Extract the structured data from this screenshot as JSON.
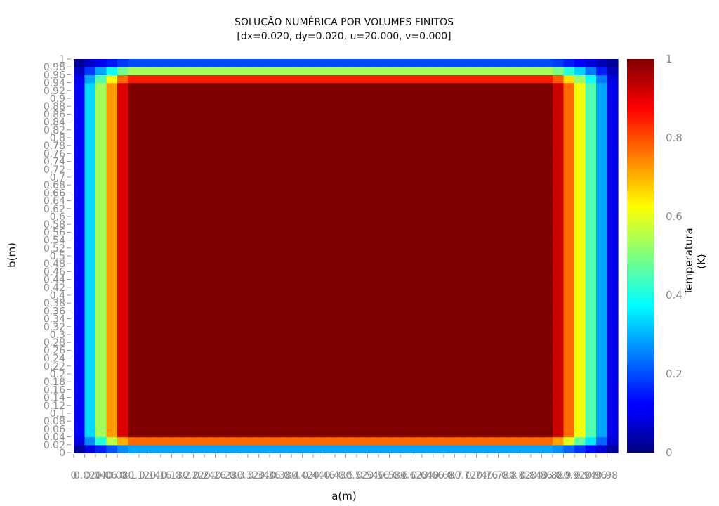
{
  "chart_data": {
    "type": "heatmap",
    "title": "SOLUÇÃO NUMÉRICA POR VOLUMES FINITOS",
    "subtitle": "[dx=0.020, dy=0.020, u=20.000, v=0.000]",
    "xlabel": "a(m)",
    "ylabel": "b(m)",
    "colorbar_label": "Temperatura (K)",
    "colormap": "jet",
    "x_range": [
      0,
      1
    ],
    "y_range": [
      0,
      1
    ],
    "value_range": [
      0,
      1
    ],
    "grid": false,
    "legend": "colorbar-right",
    "cell_size": 0.02,
    "x_cells": 50,
    "y_cells": 50,
    "field_description_values": {
      "boundary_value": 0,
      "interior_value": 1,
      "boundary_layer_left_cells": 5,
      "boundary_layer_right_cells": 6,
      "boundary_layer_top_cells": 3,
      "boundary_layer_bottom_cells": 2
    },
    "x_ticks": [
      "0",
      "0.02",
      "0.04",
      "0.06",
      "0.08",
      "0.1",
      "0.12",
      "0.14",
      "0.16",
      "0.18",
      "0.2",
      "0.22",
      "0.24",
      "0.26",
      "0.28",
      "0.3",
      "0.32",
      "0.34",
      "0.36",
      "0.38",
      "0.4",
      "0.42",
      "0.44",
      "0.46",
      "0.48",
      "0.5",
      "0.52",
      "0.54",
      "0.56",
      "0.58",
      "0.6",
      "0.62",
      "0.64",
      "0.66",
      "0.68",
      "0.7",
      "0.72",
      "0.74",
      "0.76",
      "0.78",
      "0.8",
      "0.82",
      "0.84",
      "0.86",
      "0.88",
      "0.9",
      "0.92",
      "0.94",
      "0.96",
      "0.98"
    ],
    "y_ticks": [
      "0",
      "0.02",
      "0.04",
      "0.06",
      "0.08",
      "0.1",
      "0.12",
      "0.14",
      "0.16",
      "0.18",
      "0.2",
      "0.22",
      "0.24",
      "0.26",
      "0.28",
      "0.3",
      "0.32",
      "0.34",
      "0.36",
      "0.38",
      "0.4",
      "0.42",
      "0.44",
      "0.46",
      "0.48",
      "0.5",
      "0.52",
      "0.54",
      "0.56",
      "0.58",
      "0.6",
      "0.62",
      "0.64",
      "0.66",
      "0.68",
      "0.7",
      "0.72",
      "0.74",
      "0.76",
      "0.78",
      "0.8",
      "0.82",
      "0.84",
      "0.86",
      "0.88",
      "0.9",
      "0.92",
      "0.94",
      "0.96",
      "0.98",
      "1"
    ],
    "colorbar_ticks": [
      "0",
      "0.2",
      "0.4",
      "0.6",
      "0.8",
      "1"
    ]
  }
}
